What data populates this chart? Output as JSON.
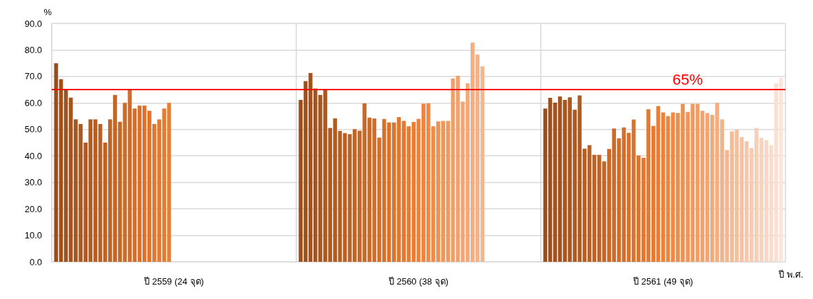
{
  "chart_data": {
    "type": "bar",
    "categories": [
      "ปี 2559 (24 จุด)",
      "ปี 2560 (38 จุด)",
      "ปี 2561 (49 จุด)"
    ],
    "xlabel": "ปี พ.ศ.",
    "ylabel": "%",
    "ylim": [
      0,
      90
    ],
    "yticks": [
      {
        "value": 0,
        "label": "0.0"
      },
      {
        "value": 10,
        "label": "10.0"
      },
      {
        "value": 20,
        "label": "20.0"
      },
      {
        "value": 30,
        "label": "30.0"
      },
      {
        "value": 40,
        "label": "40.0"
      },
      {
        "value": 50,
        "label": "50.0"
      },
      {
        "value": 60,
        "label": "60.0"
      },
      {
        "value": 70,
        "label": "70.0"
      },
      {
        "value": 80,
        "label": "80.0"
      },
      {
        "value": 90,
        "label": "90.0"
      }
    ],
    "grid": true,
    "ref_lines": [
      {
        "axis": "y",
        "value": 65,
        "label": "65%",
        "color": "#ff0000"
      }
    ],
    "series": [
      {
        "color": "#9a4e1c",
        "values": [
          75,
          61.1,
          57.9
        ]
      },
      {
        "color": "#9e501d",
        "values": [
          68.9,
          68.2,
          61.9
        ]
      },
      {
        "color": "#a1521e",
        "values": [
          65,
          71.3,
          60.1
        ]
      },
      {
        "color": "#a5541f",
        "values": [
          62,
          65.4,
          62.4
        ]
      },
      {
        "color": "#a85620",
        "values": [
          53.8,
          63,
          61.1
        ]
      },
      {
        "color": "#ac5821",
        "values": [
          52,
          65,
          62.1
        ]
      },
      {
        "color": "#b05a21",
        "values": [
          45,
          50.5,
          57.4
        ]
      },
      {
        "color": "#b35c22",
        "values": [
          53.8,
          54.2,
          62.8
        ]
      },
      {
        "color": "#b75e23",
        "values": [
          53.8,
          49.4,
          42.7
        ]
      },
      {
        "color": "#ba6024",
        "values": [
          52,
          48.6,
          44
        ]
      },
      {
        "color": "#be6225",
        "values": [
          45,
          48.2,
          40.4
        ]
      },
      {
        "color": "#c26426",
        "values": [
          53.8,
          50.1,
          40.4
        ]
      },
      {
        "color": "#c56627",
        "values": [
          63,
          49.5,
          37.9
        ]
      },
      {
        "color": "#c96928",
        "values": [
          52.9,
          59.8,
          42.6
        ]
      },
      {
        "color": "#cd6b29",
        "values": [
          60,
          54.4,
          50.3
        ]
      },
      {
        "color": "#d06d2a",
        "values": [
          65,
          54.1,
          46.6
        ]
      },
      {
        "color": "#d46f2b",
        "values": [
          57.9,
          46.9,
          50.7
        ]
      },
      {
        "color": "#d7712c",
        "values": [
          59,
          53.9,
          48.7
        ]
      },
      {
        "color": "#db732c",
        "values": [
          59,
          52.6,
          53.7
        ]
      },
      {
        "color": "#df752d",
        "values": [
          57,
          52.6,
          40.1
        ]
      },
      {
        "color": "#e2772e",
        "values": [
          52,
          54.6,
          39.3
        ]
      },
      {
        "color": "#e6792f",
        "values": [
          53.8,
          53.2,
          57.6
        ]
      },
      {
        "color": "#e97b30",
        "values": [
          57.9,
          51.2,
          51.3
        ]
      },
      {
        "color": "#ed7d31",
        "values": [
          60,
          52.8,
          58.8
        ]
      },
      {
        "color": "#ee8138",
        "values": [
          null,
          54,
          56.4
        ]
      },
      {
        "color": "#ee853f",
        "values": [
          null,
          59.7,
          55
        ]
      },
      {
        "color": "#ef8945",
        "values": [
          null,
          59.8,
          56.4
        ]
      },
      {
        "color": "#ef8d4c",
        "values": [
          null,
          51.2,
          56.2
        ]
      },
      {
        "color": "#ef9153",
        "values": [
          null,
          53,
          59.6
        ]
      },
      {
        "color": "#f0965a",
        "values": [
          null,
          53.2,
          56.6
        ]
      },
      {
        "color": "#f09a60",
        "values": [
          null,
          53.2,
          59.6
        ]
      },
      {
        "color": "#f19e67",
        "values": [
          null,
          69.2,
          59.6
        ]
      },
      {
        "color": "#f1a26e",
        "values": [
          null,
          70.2,
          57
        ]
      },
      {
        "color": "#f2a675",
        "values": [
          null,
          60.5,
          56.1
        ]
      },
      {
        "color": "#f3aa7b",
        "values": [
          null,
          67.4,
          55.5
        ]
      },
      {
        "color": "#f3ae82",
        "values": [
          null,
          82.8,
          60
        ]
      },
      {
        "color": "#f4b289",
        "values": [
          null,
          78.2,
          53.8
        ]
      },
      {
        "color": "#f4b790",
        "values": [
          null,
          73.8,
          42.2
        ]
      },
      {
        "color": "#f4bb96",
        "values": [
          null,
          null,
          49.2
        ]
      },
      {
        "color": "#f5bf9d",
        "values": [
          null,
          null,
          49.9
        ]
      },
      {
        "color": "#f5c3a4",
        "values": [
          null,
          null,
          47.1
        ]
      },
      {
        "color": "#f6c7ab",
        "values": [
          null,
          null,
          45.5
        ]
      },
      {
        "color": "#f7cbb1",
        "values": [
          null,
          null,
          42.9
        ]
      },
      {
        "color": "#f7cfb8",
        "values": [
          null,
          null,
          50.5
        ]
      },
      {
        "color": "#f8d3bf",
        "values": [
          null,
          null,
          46.8
        ]
      },
      {
        "color": "#f8d8c6",
        "values": [
          null,
          null,
          46
        ]
      },
      {
        "color": "#f9dccc",
        "values": [
          null,
          null,
          44
        ]
      },
      {
        "color": "#fae0d3",
        "values": [
          null,
          null,
          67.4
        ]
      },
      {
        "color": "#fbe4da",
        "values": [
          null,
          null,
          69.4
        ]
      }
    ]
  }
}
